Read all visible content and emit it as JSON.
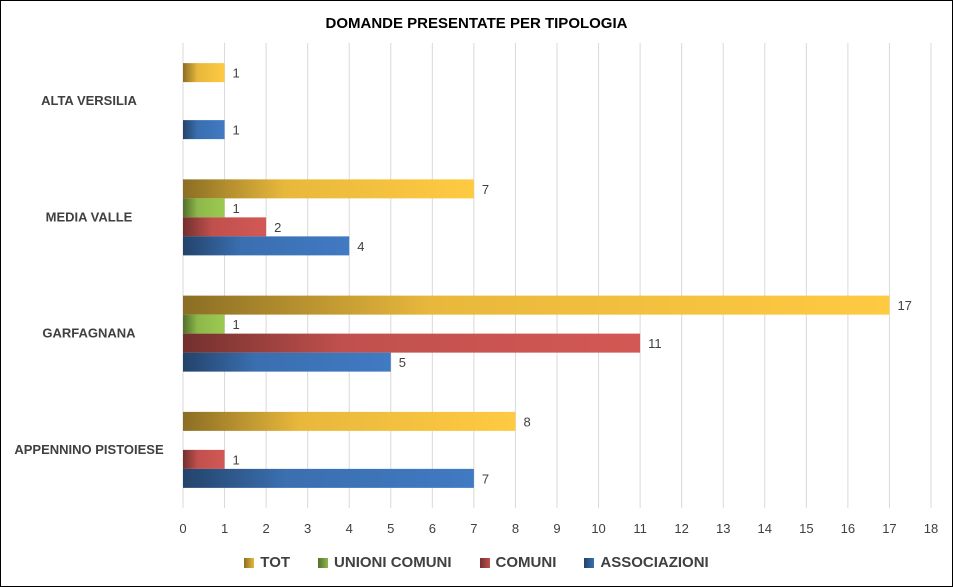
{
  "chart_data": {
    "type": "bar",
    "orientation": "horizontal",
    "title": "DOMANDE PRESENTATE PER TIPOLOGIA",
    "categories": [
      "ALTA VERSILIA",
      "MEDIA VALLE",
      "GARFAGNANA",
      "APPENNINO PISTOIESE"
    ],
    "series": [
      {
        "name": "TOT",
        "color": "#E8B83C",
        "values": [
          1,
          7,
          17,
          8
        ]
      },
      {
        "name": "UNIONI COMUNI",
        "color": "#8DB84A",
        "values": [
          null,
          1,
          1,
          null
        ]
      },
      {
        "name": "COMUNI",
        "color": "#C0504D",
        "values": [
          null,
          2,
          11,
          1
        ]
      },
      {
        "name": "ASSOCIAZIONI",
        "color": "#3A6FB0",
        "values": [
          1,
          4,
          5,
          7
        ]
      }
    ],
    "xlim": [
      0,
      18
    ],
    "x_ticks": [
      "0",
      "1",
      "2",
      "3",
      "4",
      "5",
      "6",
      "7",
      "8",
      "9",
      "10",
      "11",
      "12",
      "13",
      "14",
      "15",
      "16",
      "17",
      "18"
    ],
    "grid": true,
    "legend_position": "bottom"
  }
}
